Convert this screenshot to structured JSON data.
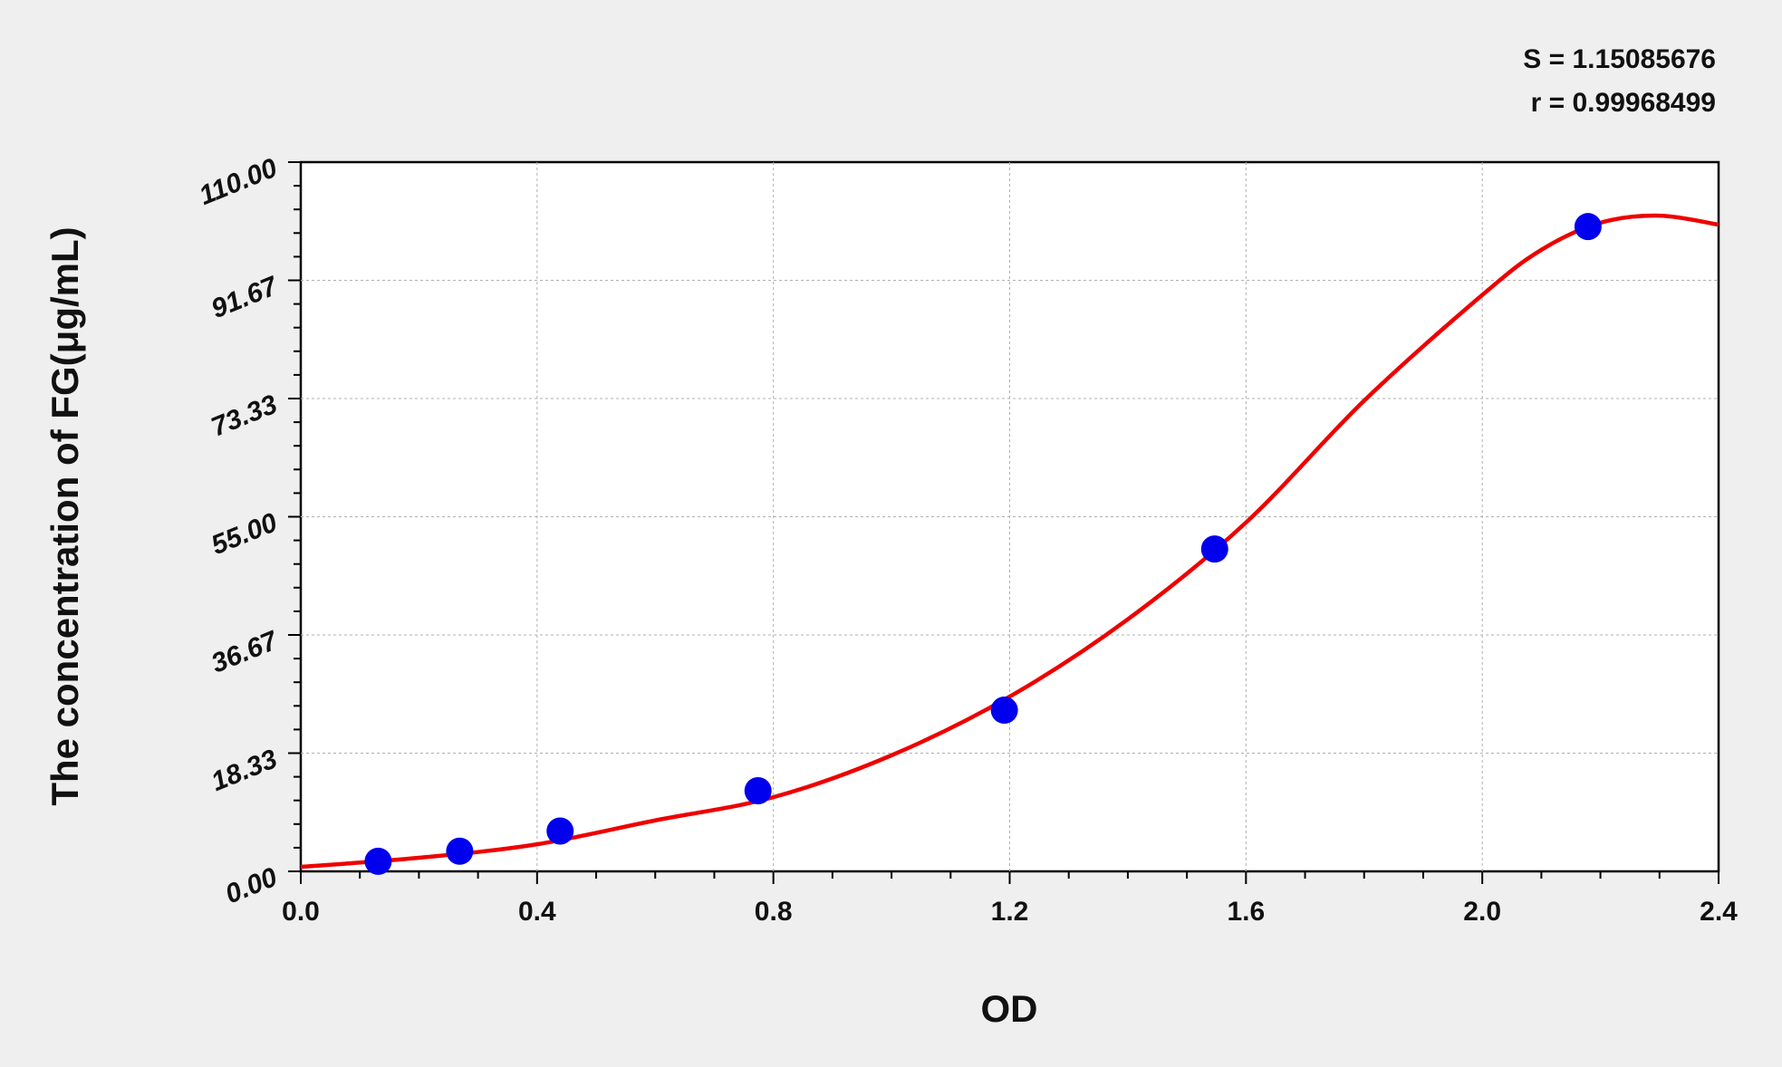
{
  "chart_data": {
    "type": "scatter",
    "xlabel": "OD",
    "ylabel": "The concentration of FG(μg/mL)",
    "xlim": [
      0,
      2.4
    ],
    "ylim": [
      0,
      110
    ],
    "xticks": [
      "0.0",
      "0.4",
      "0.8",
      "1.2",
      "1.6",
      "2.0",
      "2.4"
    ],
    "yticks": [
      "0.00",
      "18.33",
      "36.67",
      "55.00",
      "73.33",
      "91.67",
      "110.00"
    ],
    "grid": true,
    "stats": [
      "S = 1.15085676",
      "r = 0.99968499"
    ],
    "colors": {
      "points": "#0000ee",
      "curve": "#ee0000",
      "background": "#efefef",
      "plot": "#ffffff"
    },
    "series": [
      {
        "kind": "points",
        "x": [
          0.131,
          0.269,
          0.439,
          0.774,
          1.191,
          1.547,
          2.179
        ],
        "y": [
          1.56,
          3.12,
          6.25,
          12.5,
          25,
          50,
          100
        ]
      },
      {
        "kind": "fitted-curve",
        "x": [
          0,
          0.2,
          0.4,
          0.6,
          0.8,
          1.0,
          1.2,
          1.4,
          1.6,
          1.8,
          2.0,
          2.1,
          2.2,
          2.3,
          2.4
        ],
        "y": [
          0.7,
          2.1,
          4.2,
          7.9,
          11.5,
          18,
          27.1,
          39.1,
          54.1,
          73,
          89.4,
          96.4,
          100.6,
          101.7,
          100.3
        ]
      }
    ]
  }
}
